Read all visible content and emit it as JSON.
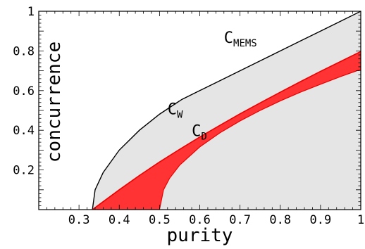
{
  "chart_data": {
    "type": "area",
    "xlabel": "purity",
    "ylabel": "concurrence",
    "xlim": [
      0.2,
      1
    ],
    "ylim": [
      0,
      1
    ],
    "x_ticks": [
      {
        "value": 0.3,
        "label": "0.3"
      },
      {
        "value": 0.4,
        "label": "0.4"
      },
      {
        "value": 0.5,
        "label": "0.5"
      },
      {
        "value": 0.6,
        "label": "0.6"
      },
      {
        "value": 0.7,
        "label": "0.7"
      },
      {
        "value": 0.8,
        "label": "0.8"
      },
      {
        "value": 0.9,
        "label": "0.9"
      },
      {
        "value": 1,
        "label": "1"
      }
    ],
    "y_ticks": [
      {
        "value": 0.2,
        "label": "0.2"
      },
      {
        "value": 0.4,
        "label": "0.4"
      },
      {
        "value": 0.6,
        "label": "0.6"
      },
      {
        "value": 0.8,
        "label": "0.8"
      },
      {
        "value": 1,
        "label": "1"
      }
    ],
    "grid": false,
    "colors": {
      "region_fill": "#e5e5e5",
      "werner_region_fill": "#ff3333",
      "mems_curve": "#000000",
      "werner_curve": "#ee0000"
    },
    "series": [
      {
        "key": "mems",
        "label_main": "C",
        "label_sub": "MEMS",
        "x": [
          0.3333,
          0.34,
          0.36,
          0.4,
          0.45,
          0.5,
          0.5556,
          0.6,
          0.65,
          0.7,
          0.75,
          0.8,
          0.85,
          0.9,
          0.95,
          1.0
        ],
        "y": [
          0.0,
          0.1,
          0.187,
          0.3,
          0.4,
          0.481,
          0.5556,
          0.6,
          0.65,
          0.7,
          0.75,
          0.8,
          0.85,
          0.9,
          0.95,
          1.0
        ]
      },
      {
        "key": "werner",
        "label_main": "C",
        "label_sub": "W",
        "x": [
          0.3333,
          0.35,
          0.4,
          0.45,
          0.5,
          0.55,
          0.6,
          0.65,
          0.7,
          0.75,
          0.8,
          0.85,
          0.9,
          0.95,
          1.0
        ],
        "y": [
          0.0,
          0.025,
          0.1,
          0.172,
          0.24,
          0.304,
          0.366,
          0.425,
          0.483,
          0.538,
          0.592,
          0.645,
          0.697,
          0.747,
          0.797
        ]
      },
      {
        "key": "diagonal",
        "label_main": "C",
        "label_sub": "D",
        "x": [
          0.5,
          0.51,
          0.525,
          0.55,
          0.6,
          0.65,
          0.7,
          0.75,
          0.8,
          0.85,
          0.9,
          0.95,
          1.0
        ],
        "y": [
          0.0,
          0.1,
          0.158,
          0.224,
          0.316,
          0.387,
          0.447,
          0.5,
          0.548,
          0.592,
          0.632,
          0.671,
          0.707
        ]
      }
    ]
  }
}
